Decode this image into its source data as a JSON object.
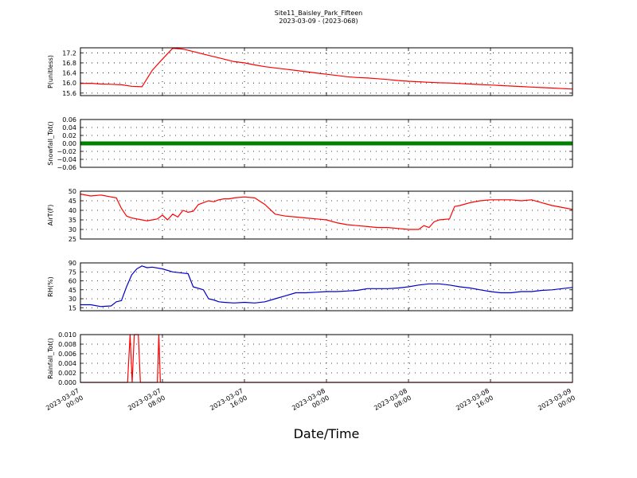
{
  "figure": {
    "title_line1": "Site11_Baisley_Park_Fifteen",
    "title_line2": "2023-03-09 - (2023-068)",
    "xlabel": "Date/Time"
  },
  "chart_data": [
    {
      "type": "line",
      "ylabel": "P(unitless)",
      "ylim": [
        15.5,
        17.4
      ],
      "yticks": [
        15.6,
        16.0,
        16.4,
        16.8,
        17.2
      ],
      "ytick_labels": [
        "15.6",
        "16.0",
        "16.4",
        "16.8",
        "17.2"
      ],
      "grid": true,
      "color": "#ff0000",
      "x_hours": [
        0,
        1,
        2,
        3,
        4,
        5,
        6,
        7,
        8,
        9,
        10,
        11,
        12,
        13,
        14,
        15,
        16,
        17,
        18,
        19,
        20,
        21,
        22,
        23,
        24,
        25,
        26,
        27,
        28,
        29,
        30,
        31,
        32,
        33,
        34,
        35,
        36,
        37,
        38,
        39,
        40,
        41,
        42,
        43,
        44,
        45,
        46,
        47,
        48
      ],
      "y": [
        15.98,
        15.99,
        15.96,
        15.95,
        15.93,
        15.87,
        15.85,
        16.5,
        16.95,
        17.38,
        17.35,
        17.25,
        17.15,
        17.05,
        16.95,
        16.85,
        16.8,
        16.72,
        16.65,
        16.6,
        16.55,
        16.5,
        16.45,
        16.4,
        16.35,
        16.3,
        16.25,
        16.22,
        16.2,
        16.17,
        16.14,
        16.1,
        16.07,
        16.05,
        16.03,
        16.01,
        16.0,
        15.98,
        15.96,
        15.94,
        15.92,
        15.9,
        15.88,
        15.86,
        15.84,
        15.82,
        15.8,
        15.78,
        15.76
      ]
    },
    {
      "type": "scatter",
      "ylabel": "Snowfall_Tot()",
      "ylim": [
        -0.06,
        0.06
      ],
      "yticks": [
        -0.06,
        -0.04,
        -0.02,
        0.0,
        0.02,
        0.04,
        0.06
      ],
      "ytick_labels": [
        "−0.06",
        "−0.04",
        "−0.02",
        "0.00",
        "0.02",
        "0.04",
        "0.06"
      ],
      "grid": true,
      "color": "#008000",
      "x_hours": [
        0,
        48
      ],
      "y": [
        0.0,
        0.0
      ]
    },
    {
      "type": "line",
      "ylabel": "AirT(F)",
      "ylim": [
        25,
        50
      ],
      "yticks": [
        25,
        30,
        35,
        40,
        45,
        50
      ],
      "ytick_labels": [
        "25",
        "30",
        "35",
        "40",
        "45",
        "50"
      ],
      "grid": true,
      "color": "#ff0000",
      "x_hours": [
        0,
        1,
        2,
        3,
        3.5,
        4,
        4.5,
        5,
        5.5,
        6,
        6.5,
        7,
        7.5,
        8,
        8.5,
        9,
        9.5,
        10,
        10.5,
        11,
        11.5,
        12,
        12.5,
        13,
        13.5,
        14,
        14.5,
        15,
        16,
        17,
        18,
        19,
        20,
        21,
        22,
        23,
        24,
        25,
        26,
        27,
        28,
        29,
        30,
        31,
        32,
        33,
        33.5,
        34,
        34.5,
        35,
        36,
        36.5,
        37,
        38,
        39,
        40,
        41,
        42,
        43,
        44,
        45,
        46,
        47,
        48
      ],
      "y": [
        48.5,
        47.5,
        48.0,
        47.0,
        46.5,
        41.0,
        37.0,
        36.0,
        35.5,
        35.0,
        34.5,
        35.0,
        35.5,
        37.5,
        35.0,
        38.0,
        36.5,
        40.0,
        39.0,
        39.5,
        43.0,
        44.0,
        45.0,
        44.5,
        45.5,
        46.0,
        46.0,
        46.5,
        47.0,
        46.5,
        43.0,
        38.0,
        37.0,
        36.5,
        36.0,
        35.5,
        35.0,
        33.5,
        32.5,
        32.0,
        31.5,
        31.0,
        31.0,
        30.5,
        30.0,
        30.0,
        32.0,
        31.0,
        34.0,
        35.0,
        35.5,
        42.0,
        42.5,
        44.0,
        45.0,
        45.5,
        45.5,
        45.5,
        45.0,
        45.5,
        44.0,
        42.5,
        41.5,
        40.5
      ]
    },
    {
      "type": "line",
      "ylabel": "RH(%)",
      "ylim": [
        10,
        90
      ],
      "yticks": [
        15,
        30,
        45,
        60,
        75,
        90
      ],
      "ytick_labels": [
        "15",
        "30",
        "45",
        "60",
        "75",
        "90"
      ],
      "grid": true,
      "color": "#0000cc",
      "x_hours": [
        0,
        1,
        2,
        3,
        3.5,
        4,
        4.5,
        5,
        5.5,
        6,
        6.5,
        7,
        8,
        9,
        10,
        10.5,
        11,
        12,
        12.5,
        13,
        13.5,
        14,
        15,
        16,
        17,
        18,
        19,
        20,
        21,
        22,
        23,
        24,
        25,
        26,
        27,
        28,
        29,
        30,
        31,
        32,
        33,
        34,
        35,
        36,
        37,
        38,
        39,
        40,
        41,
        42,
        43,
        44,
        45,
        46,
        47,
        48
      ],
      "y": [
        20,
        20,
        17,
        18,
        25,
        27,
        50,
        70,
        80,
        85,
        82,
        83,
        80,
        75,
        73,
        72,
        50,
        45,
        30,
        28,
        25,
        24,
        23,
        24,
        23,
        25,
        30,
        35,
        40,
        40,
        41,
        42,
        42,
        43,
        44,
        47,
        47,
        47,
        48,
        50,
        53,
        55,
        55,
        53,
        50,
        48,
        45,
        42,
        40,
        40,
        42,
        42,
        44,
        45,
        47,
        49
      ]
    },
    {
      "type": "line",
      "ylabel": "Rainfall_Tot()",
      "ylim": [
        0.0,
        0.01
      ],
      "yticks": [
        0.0,
        0.002,
        0.004,
        0.006,
        0.008,
        0.01
      ],
      "ytick_labels": [
        "0.000",
        "0.002",
        "0.004",
        "0.006",
        "0.008",
        "0.010"
      ],
      "grid": true,
      "color": "#ff0000",
      "x_hours": [
        0,
        4.6,
        4.85,
        5.05,
        5.25,
        5.45,
        5.65,
        5.85,
        6.05,
        7.5,
        7.65,
        7.8,
        48
      ],
      "y": [
        0,
        0,
        0.01,
        0,
        0.01,
        0.01,
        0.01,
        0,
        0,
        0,
        0.01,
        0,
        0
      ]
    }
  ],
  "x_axis": {
    "range_hours": [
      0,
      48
    ],
    "tick_hours": [
      0,
      8,
      16,
      24,
      32,
      40,
      48
    ],
    "tick_labels": [
      [
        "2023-03-07",
        "00:00"
      ],
      [
        "2023-03-07",
        "08:00"
      ],
      [
        "2023-03-07",
        "16:00"
      ],
      [
        "2023-03-08",
        "00:00"
      ],
      [
        "2023-03-08",
        "08:00"
      ],
      [
        "2023-03-08",
        "16:00"
      ],
      [
        "2023-03-09",
        "00:00"
      ]
    ]
  }
}
